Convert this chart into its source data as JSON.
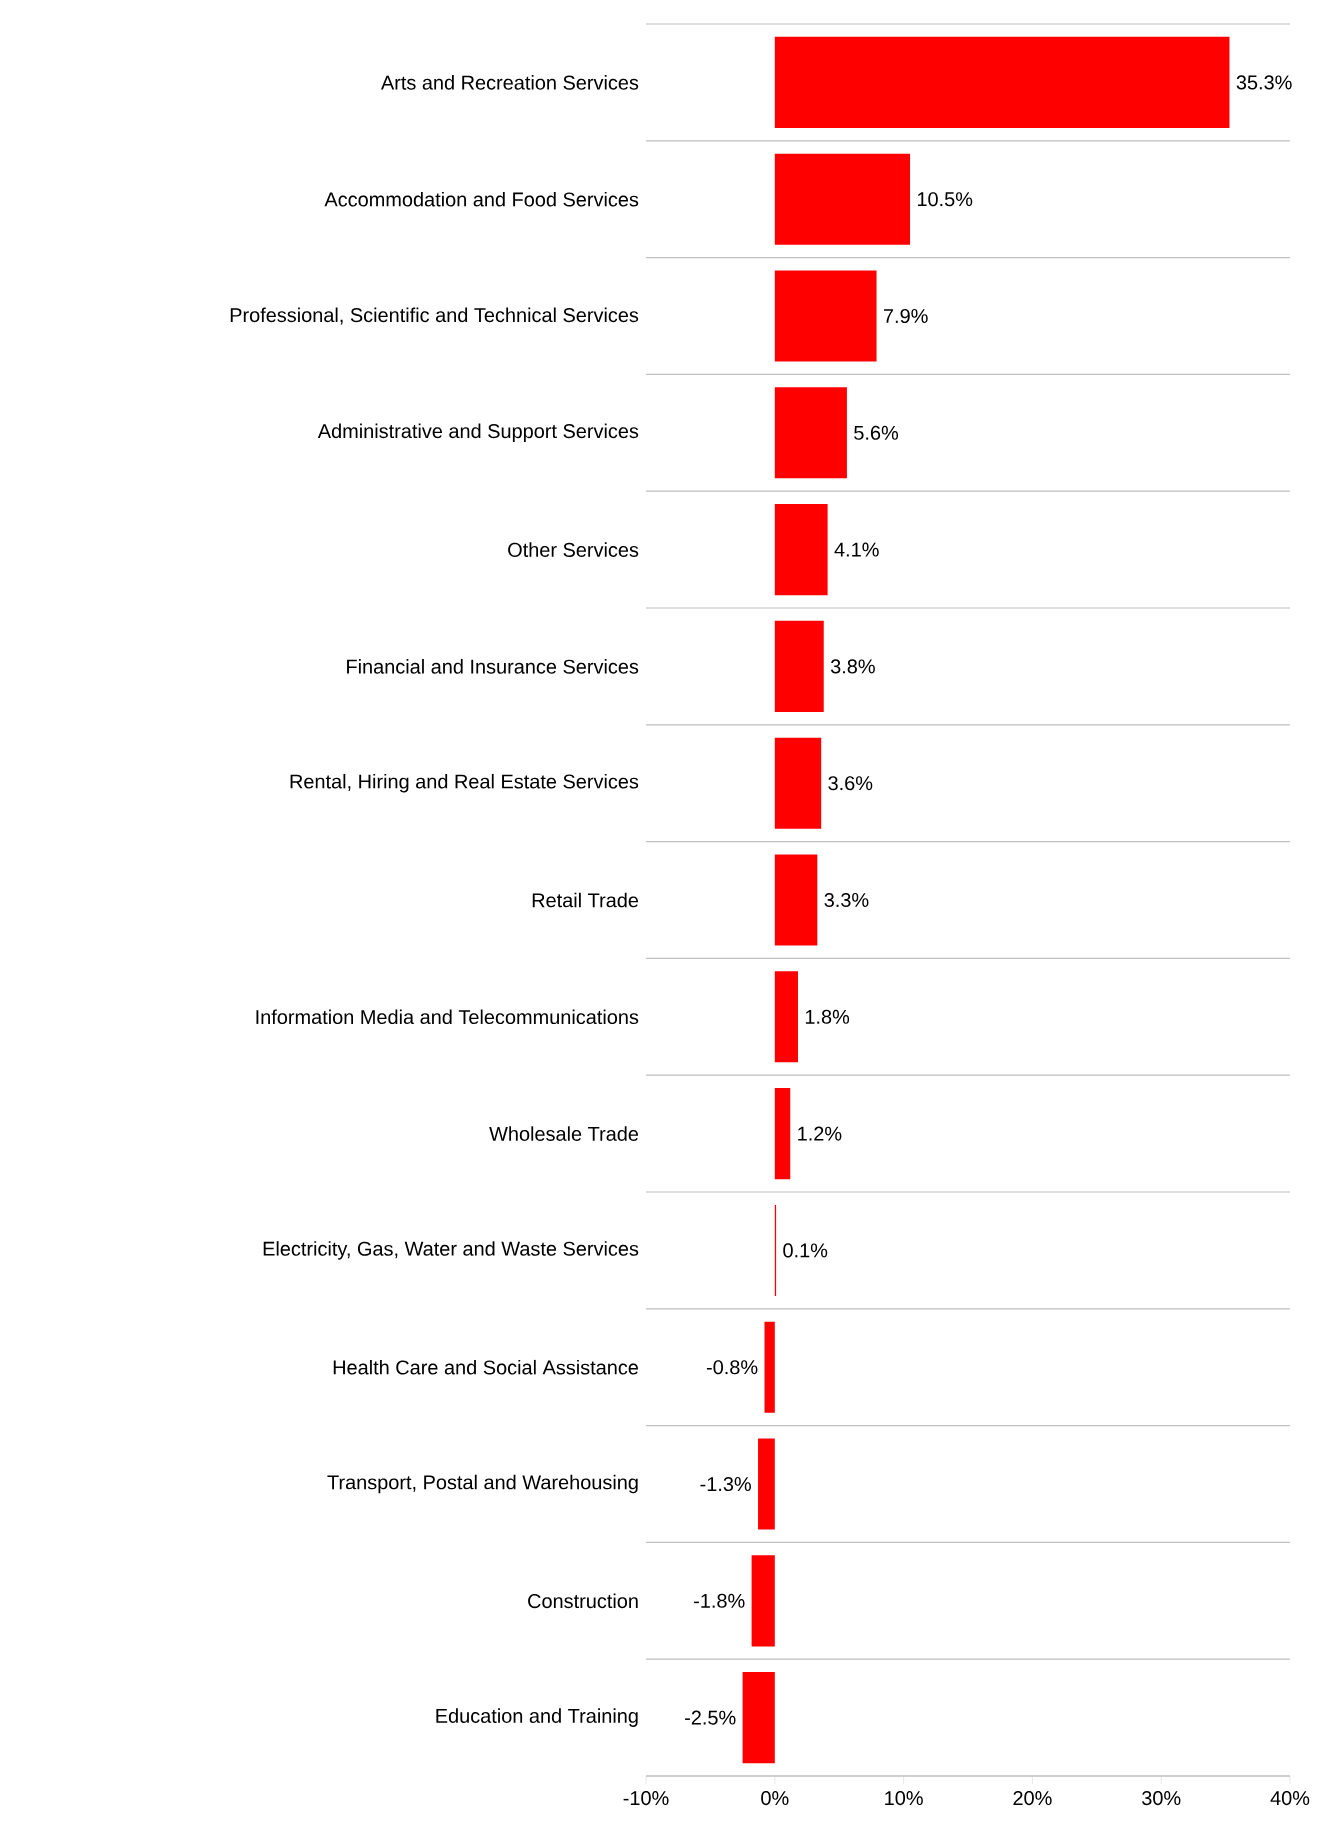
{
  "chart_data": {
    "type": "bar",
    "orientation": "horizontal",
    "categories": [
      "Arts and Recreation Services",
      "Accommodation and Food Services",
      "Professional, Scientific and Technical Services",
      "Administrative and Support Services",
      "Other Services",
      "Financial and Insurance Services",
      "Rental, Hiring and Real Estate Services",
      "Retail Trade",
      "Information Media and Telecommunications",
      "Wholesale Trade",
      "Electricity, Gas, Water and Waste Services",
      "Health Care and Social Assistance",
      "Transport, Postal and Warehousing",
      "Construction",
      "Education and Training"
    ],
    "values": [
      35.3,
      10.5,
      7.9,
      5.6,
      4.1,
      3.8,
      3.6,
      3.3,
      1.8,
      1.2,
      0.1,
      -0.8,
      -1.3,
      -1.8,
      -2.5
    ],
    "value_labels": [
      "35.3%",
      "10.5%",
      "7.9%",
      "5.6%",
      "4.1%",
      "3.8%",
      "3.6%",
      "3.3%",
      "1.8%",
      "1.2%",
      "0.1%",
      "-0.8%",
      "-1.3%",
      "-1.8%",
      "-2.5%"
    ],
    "color": "#ff0000",
    "xlim": [
      -10,
      40
    ],
    "xticks": [
      {
        "value": -10,
        "label": "-10%"
      },
      {
        "value": 0,
        "label": "0%"
      },
      {
        "value": 10,
        "label": "10%"
      },
      {
        "value": 20,
        "label": "20%"
      },
      {
        "value": 30,
        "label": "30%"
      },
      {
        "value": 40,
        "label": "40%"
      }
    ],
    "grid": "y"
  }
}
